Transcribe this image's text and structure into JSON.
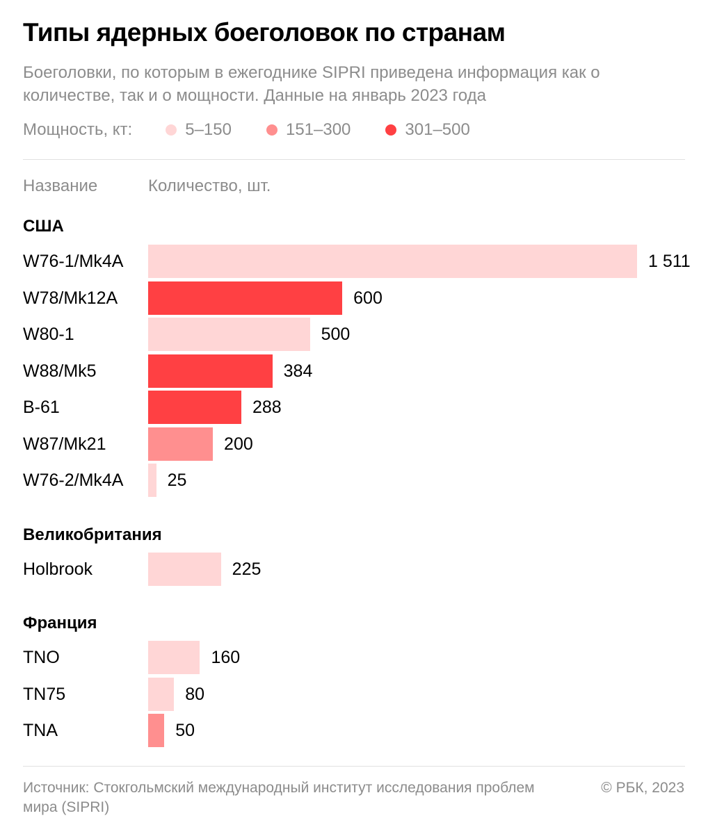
{
  "header": {
    "title": "Типы ядерных боеголовок по странам",
    "subtitle": "Боеголовки, по которым в ежегоднике SIPRI приведена информация как о количестве, так и о мощности. Данные на январь 2023 года"
  },
  "legend": {
    "label": "Мощность, кт:",
    "items": [
      {
        "label": "5–150",
        "color": "#ffd6d6"
      },
      {
        "label": "151–300",
        "color": "#ff8f8f"
      },
      {
        "label": "301–500",
        "color": "#ff4043"
      }
    ]
  },
  "columns": {
    "name": "Название",
    "quantity": "Количество, шт."
  },
  "chart_data": {
    "type": "bar",
    "orientation": "horizontal",
    "xlim": [
      0,
      1511
    ],
    "grid": false,
    "groups": [
      {
        "name": "США",
        "items": [
          {
            "label": "W76-1/Mk4A",
            "value": 1511,
            "value_label": "1 511",
            "yield_class": "5–150"
          },
          {
            "label": "W78/Mk12A",
            "value": 600,
            "value_label": "600",
            "yield_class": "301–500"
          },
          {
            "label": "W80-1",
            "value": 500,
            "value_label": "500",
            "yield_class": "5–150"
          },
          {
            "label": "W88/Mk5",
            "value": 384,
            "value_label": "384",
            "yield_class": "301–500"
          },
          {
            "label": "B-61",
            "value": 288,
            "value_label": "288",
            "yield_class": "301–500"
          },
          {
            "label": "W87/Mk21",
            "value": 200,
            "value_label": "200",
            "yield_class": "151–300"
          },
          {
            "label": "W76-2/Mk4A",
            "value": 25,
            "value_label": "25",
            "yield_class": "5–150"
          }
        ]
      },
      {
        "name": "Великобритания",
        "items": [
          {
            "label": "Holbrook",
            "value": 225,
            "value_label": "225",
            "yield_class": "5–150"
          }
        ]
      },
      {
        "name": "Франция",
        "items": [
          {
            "label": "TNO",
            "value": 160,
            "value_label": "160",
            "yield_class": "5–150"
          },
          {
            "label": "TN75",
            "value": 80,
            "value_label": "80",
            "yield_class": "5–150"
          },
          {
            "label": "TNA",
            "value": 50,
            "value_label": "50",
            "yield_class": "151–300"
          }
        ]
      }
    ]
  },
  "footer": {
    "source": "Источник: Стокгольмский международный институт исследования проблем мира (SIPRI)",
    "copyright": "© РБК, 2023"
  }
}
